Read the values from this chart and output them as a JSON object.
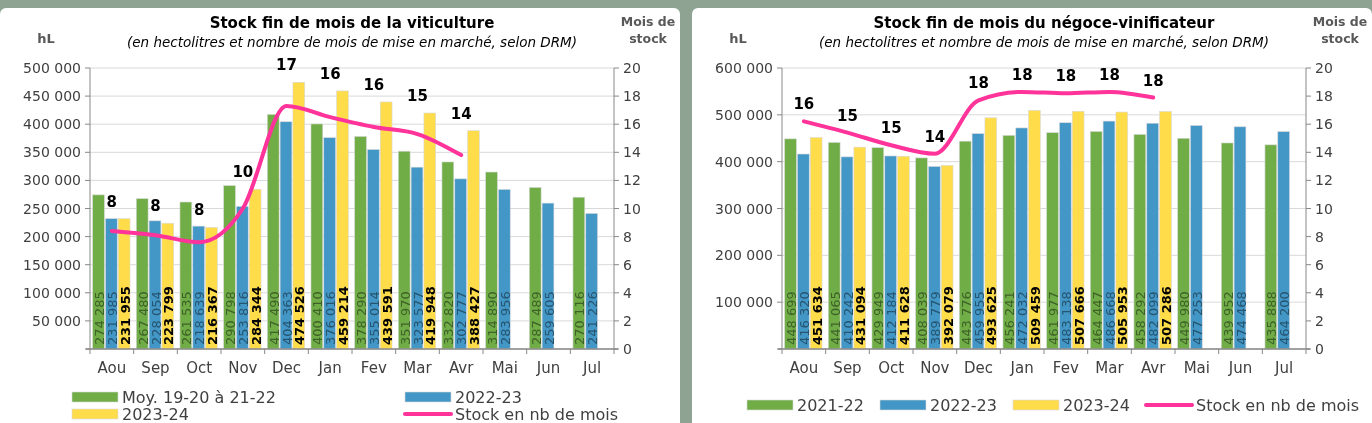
{
  "chart_data": [
    {
      "type": "bar",
      "title": "Stock fin de mois de la viticulture",
      "subtitle": "(en hectolitres et nombre de mois de mise en marché, selon DRM)",
      "ylabel": "hL",
      "y2label": "Mois de stock",
      "categories": [
        "Aou",
        "Sep",
        "Oct",
        "Nov",
        "Dec",
        "Jan",
        "Fev",
        "Mar",
        "Avr",
        "Mai",
        "Jun",
        "Jul"
      ],
      "series": [
        {
          "name": "Moy. 19-20 à 21-22",
          "color": "#70ad47",
          "values": [
            274285,
            267480,
            261535,
            290798,
            417490,
            400410,
            378290,
            351970,
            332820,
            314890,
            287489,
            270116
          ],
          "value_labels": [
            "274 285",
            "267 480",
            "261 535",
            "290 798",
            "417 490",
            "400 410",
            "378 290",
            "351 970",
            "332 820",
            "314 890",
            "287 489",
            "270 116"
          ]
        },
        {
          "name": "2022-23",
          "color": "#4397c7",
          "values": [
            231985,
            228054,
            218639,
            253816,
            404363,
            376016,
            355014,
            323577,
            302777,
            283956,
            259605,
            241226
          ],
          "value_labels": [
            "231 985",
            "228 054",
            "218 639",
            "253 816",
            "404 363",
            "376 016",
            "355 014",
            "323 577",
            "302 777",
            "283 956",
            "259 605",
            "241 226"
          ]
        },
        {
          "name": "2023-24",
          "color": "#ffdc4a",
          "values": [
            231955,
            223799,
            216367,
            284344,
            474526,
            459214,
            439591,
            419948,
            388427,
            null,
            null,
            null
          ],
          "value_labels": [
            "231 955",
            "223 799",
            "216 367",
            "284 344",
            "474 526",
            "459 214",
            "439 591",
            "419 948",
            "388 427",
            null,
            null,
            null
          ]
        },
        {
          "name": "Stock en nb de mois",
          "type": "line",
          "axis": "y2",
          "color": "#ff3399",
          "values": [
            8.4,
            8.1,
            7.6,
            10.0,
            17.3,
            16.5,
            15.8,
            15.3,
            13.8,
            null,
            null,
            null
          ],
          "value_labels": [
            "8",
            "8",
            "8",
            "10",
            "17",
            "16",
            "16",
            "15",
            "14",
            null,
            null,
            null
          ]
        }
      ],
      "ylim": [
        0,
        500000
      ],
      "yticks": [
        {
          "value": 0,
          "label": null
        },
        {
          "value": 50000,
          "label": "50 000"
        },
        {
          "value": 100000,
          "label": "100 000"
        },
        {
          "value": 150000,
          "label": "150 000"
        },
        {
          "value": 200000,
          "label": "200 000"
        },
        {
          "value": 250000,
          "label": "250 000"
        },
        {
          "value": 300000,
          "label": "300 000"
        },
        {
          "value": 350000,
          "label": "350 000"
        },
        {
          "value": 400000,
          "label": "400 000"
        },
        {
          "value": 450000,
          "label": "450 000"
        },
        {
          "value": 500000,
          "label": "500 000"
        }
      ],
      "y2lim": [
        0,
        20
      ],
      "y2ticks": [
        0,
        2,
        4,
        6,
        8,
        10,
        12,
        14,
        16,
        18,
        20
      ],
      "grid": "y",
      "legend": "bottom"
    },
    {
      "type": "bar",
      "title": "Stock fin de mois du négoce-vinificateur",
      "subtitle": "(en hectolitres et nombre de mois de mise en marché, selon DRM)",
      "ylabel": "hL",
      "y2label": "Mois de stock",
      "categories": [
        "Aou",
        "Sep",
        "Oct",
        "Nov",
        "Dec",
        "Jan",
        "Fev",
        "Mar",
        "Avr",
        "Mai",
        "Jun",
        "Jul"
      ],
      "series": [
        {
          "name": "2021-22",
          "color": "#70ad47",
          "values": [
            448699,
            441065,
            429949,
            408039,
            443776,
            456241,
            461977,
            464447,
            458292,
            449980,
            439952,
            435888
          ],
          "value_labels": [
            "448 699",
            "441 065",
            "429 949",
            "408 039",
            "443 776",
            "456 241",
            "461 977",
            "464 447",
            "458 292",
            "449 980",
            "439 952",
            "435 888"
          ]
        },
        {
          "name": "2022-23",
          "color": "#4397c7",
          "values": [
            416320,
            410242,
            412184,
            389779,
            459955,
            472032,
            483138,
            486668,
            482099,
            477253,
            474468,
            464200
          ],
          "value_labels": [
            "416 320",
            "410 242",
            "412 184",
            "389 779",
            "459 955",
            "472 032",
            "483 138",
            "486 668",
            "482 099",
            "477 253",
            "474 468",
            "464 200"
          ]
        },
        {
          "name": "2023-24",
          "color": "#ffdc4a",
          "values": [
            451634,
            431094,
            411628,
            392079,
            493625,
            509459,
            507666,
            505953,
            507286,
            null,
            null,
            null
          ],
          "value_labels": [
            "451 634",
            "431 094",
            "411 628",
            "392 079",
            "493 625",
            "509 459",
            "507 666",
            "505 953",
            "507 286",
            null,
            null,
            null
          ]
        },
        {
          "name": "Stock en nb de mois",
          "type": "line",
          "axis": "y2",
          "color": "#ff3399",
          "values": [
            16.2,
            15.4,
            14.5,
            13.9,
            17.7,
            18.3,
            18.2,
            18.3,
            17.9,
            null,
            null,
            null
          ],
          "value_labels": [
            "16",
            "15",
            "15",
            "14",
            "18",
            "18",
            "18",
            "18",
            "18",
            null,
            null,
            null
          ]
        }
      ],
      "ylim": [
        0,
        600000
      ],
      "yticks": [
        {
          "value": 0,
          "label": null
        },
        {
          "value": 100000,
          "label": "100 000"
        },
        {
          "value": 200000,
          "label": "200 000"
        },
        {
          "value": 300000,
          "label": "300 000"
        },
        {
          "value": 400000,
          "label": "400 000"
        },
        {
          "value": 500000,
          "label": "500 000"
        },
        {
          "value": 600000,
          "label": "600 000"
        }
      ],
      "y2lim": [
        0,
        20
      ],
      "y2ticks": [
        0,
        2,
        4,
        6,
        8,
        10,
        12,
        14,
        16,
        18,
        20
      ],
      "grid": "y",
      "legend": "bottom"
    }
  ]
}
